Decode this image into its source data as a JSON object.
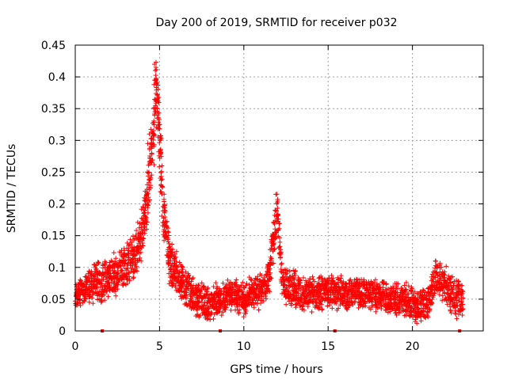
{
  "chart_data": {
    "type": "scatter",
    "title": "Day 200 of 2019, SRMTID for receiver p032",
    "xlabel": "GPS time / hours",
    "ylabel": "SRMTID / TECUs",
    "xlim": [
      0,
      24.2
    ],
    "ylim": [
      0,
      0.45
    ],
    "xticks": [
      0,
      5,
      10,
      15,
      20
    ],
    "xtick_labels": [
      "0",
      "5",
      "10",
      "15",
      "20"
    ],
    "yticks": [
      0,
      0.05,
      0.1,
      0.15,
      0.2,
      0.25,
      0.3,
      0.35,
      0.4,
      0.45
    ],
    "ytick_labels": [
      "0",
      "0.05",
      "0.1",
      "0.15",
      "0.2",
      "0.25",
      "0.3",
      "0.35",
      "0.4",
      "0.45"
    ],
    "grid": true,
    "marker": "+",
    "color": "#ff0000",
    "series": [
      {
        "name": "SRMTID",
        "x": [
          0.0,
          0.25,
          0.5,
          0.75,
          1.0,
          1.25,
          1.5,
          1.75,
          2.0,
          2.25,
          2.5,
          2.75,
          3.0,
          3.25,
          3.5,
          3.75,
          4.0,
          4.2,
          4.4,
          4.6,
          4.8,
          5.0,
          5.2,
          5.4,
          5.6,
          5.8,
          6.0,
          6.25,
          6.5,
          6.75,
          7.0,
          7.25,
          7.5,
          7.75,
          8.0,
          8.25,
          8.5,
          8.75,
          9.0,
          9.25,
          9.5,
          9.75,
          10.0,
          10.25,
          10.5,
          10.75,
          11.0,
          11.25,
          11.5,
          11.75,
          12.0,
          12.25,
          12.5,
          12.75,
          13.0,
          13.25,
          13.5,
          13.75,
          14.0,
          14.25,
          14.5,
          14.75,
          15.0,
          15.25,
          15.5,
          15.75,
          16.0,
          16.25,
          16.5,
          16.75,
          17.0,
          17.25,
          17.5,
          17.75,
          18.0,
          18.25,
          18.5,
          18.75,
          19.0,
          19.25,
          19.5,
          19.75,
          20.0,
          20.25,
          20.5,
          20.75,
          21.0,
          21.25,
          21.5,
          21.75,
          22.0,
          22.25,
          22.5,
          22.75
        ],
        "y": [
          0.05,
          0.06,
          0.06,
          0.07,
          0.07,
          0.08,
          0.07,
          0.08,
          0.08,
          0.09,
          0.09,
          0.1,
          0.1,
          0.11,
          0.12,
          0.14,
          0.16,
          0.19,
          0.24,
          0.3,
          0.38,
          0.3,
          0.2,
          0.15,
          0.11,
          0.1,
          0.09,
          0.08,
          0.07,
          0.06,
          0.05,
          0.05,
          0.05,
          0.045,
          0.04,
          0.045,
          0.05,
          0.05,
          0.055,
          0.06,
          0.055,
          0.05,
          0.05,
          0.055,
          0.06,
          0.06,
          0.06,
          0.07,
          0.09,
          0.14,
          0.19,
          0.08,
          0.07,
          0.07,
          0.065,
          0.06,
          0.06,
          0.06,
          0.06,
          0.055,
          0.06,
          0.06,
          0.065,
          0.06,
          0.06,
          0.06,
          0.055,
          0.06,
          0.06,
          0.065,
          0.06,
          0.06,
          0.06,
          0.055,
          0.05,
          0.055,
          0.05,
          0.05,
          0.05,
          0.045,
          0.05,
          0.05,
          0.045,
          0.04,
          0.04,
          0.045,
          0.05,
          0.07,
          0.09,
          0.08,
          0.07,
          0.06,
          0.055,
          0.05
        ],
        "spread": [
          0.02,
          0.02,
          0.025,
          0.025,
          0.03,
          0.03,
          0.03,
          0.03,
          0.03,
          0.03,
          0.03,
          0.03,
          0.035,
          0.035,
          0.04,
          0.04,
          0.04,
          0.04,
          0.05,
          0.06,
          0.05,
          0.05,
          0.04,
          0.035,
          0.035,
          0.03,
          0.03,
          0.03,
          0.03,
          0.03,
          0.025,
          0.025,
          0.025,
          0.025,
          0.025,
          0.025,
          0.025,
          0.025,
          0.025,
          0.025,
          0.025,
          0.025,
          0.025,
          0.025,
          0.025,
          0.025,
          0.025,
          0.025,
          0.03,
          0.03,
          0.03,
          0.03,
          0.03,
          0.03,
          0.03,
          0.025,
          0.025,
          0.025,
          0.025,
          0.025,
          0.025,
          0.025,
          0.025,
          0.025,
          0.025,
          0.025,
          0.025,
          0.025,
          0.025,
          0.025,
          0.025,
          0.025,
          0.025,
          0.025,
          0.025,
          0.025,
          0.025,
          0.025,
          0.025,
          0.025,
          0.025,
          0.025,
          0.025,
          0.025,
          0.025,
          0.025,
          0.025,
          0.03,
          0.03,
          0.03,
          0.03,
          0.03,
          0.03,
          0.03
        ],
        "baseline_points": [
          1.6,
          8.6,
          15.4,
          22.8
        ]
      }
    ]
  }
}
